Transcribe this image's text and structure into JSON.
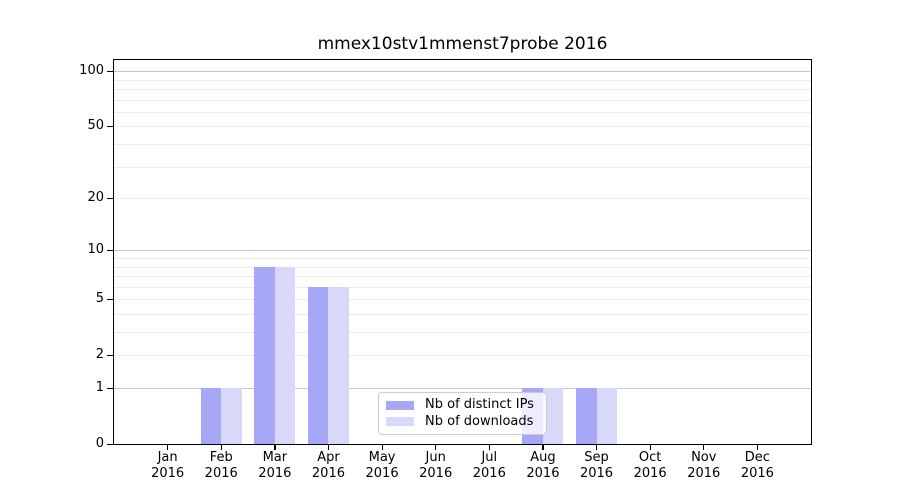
{
  "chart_data": {
    "type": "bar",
    "title": "mmex10stv1mmenst7probe 2016",
    "categories": [
      "Jan 2016",
      "Feb 2016",
      "Mar 2016",
      "Apr 2016",
      "May 2016",
      "Jun 2016",
      "Jul 2016",
      "Aug 2016",
      "Sep 2016",
      "Oct 2016",
      "Nov 2016",
      "Dec 2016"
    ],
    "series": [
      {
        "name": "Nb of distinct IPs",
        "color": "#a7a7f7",
        "values": [
          0,
          1,
          8,
          6,
          0,
          0,
          0,
          1,
          1,
          0,
          0,
          0
        ]
      },
      {
        "name": "Nb of downloads",
        "color": "#d8d8f8",
        "values": [
          0,
          1,
          8,
          6,
          0,
          0,
          0,
          1,
          1,
          0,
          0,
          0
        ]
      }
    ],
    "xlabel": "",
    "ylabel": "",
    "yscale": "log1p",
    "ylim": [
      0,
      115
    ],
    "y_ticks": [
      0,
      1,
      2,
      5,
      10,
      20,
      50,
      100
    ],
    "major_gridlines": [
      1,
      10,
      100
    ],
    "minor_gridlines": [
      2,
      3,
      4,
      5,
      6,
      7,
      8,
      9,
      20,
      30,
      40,
      50,
      60,
      70,
      80,
      90
    ],
    "grid": true,
    "legend_position": "lower center, inside plot"
  },
  "legend": {
    "items": [
      {
        "label": "Nb of distinct IPs",
        "color": "#a7a7f7"
      },
      {
        "label": "Nb of downloads",
        "color": "#d8d8f8"
      }
    ]
  },
  "colors": {
    "background": "#ffffff",
    "axis": "#000000",
    "major_grid": "#c9c9c9",
    "minor_grid": "#ebebeb",
    "legend_border": "#cccccc",
    "text": "#000000"
  }
}
